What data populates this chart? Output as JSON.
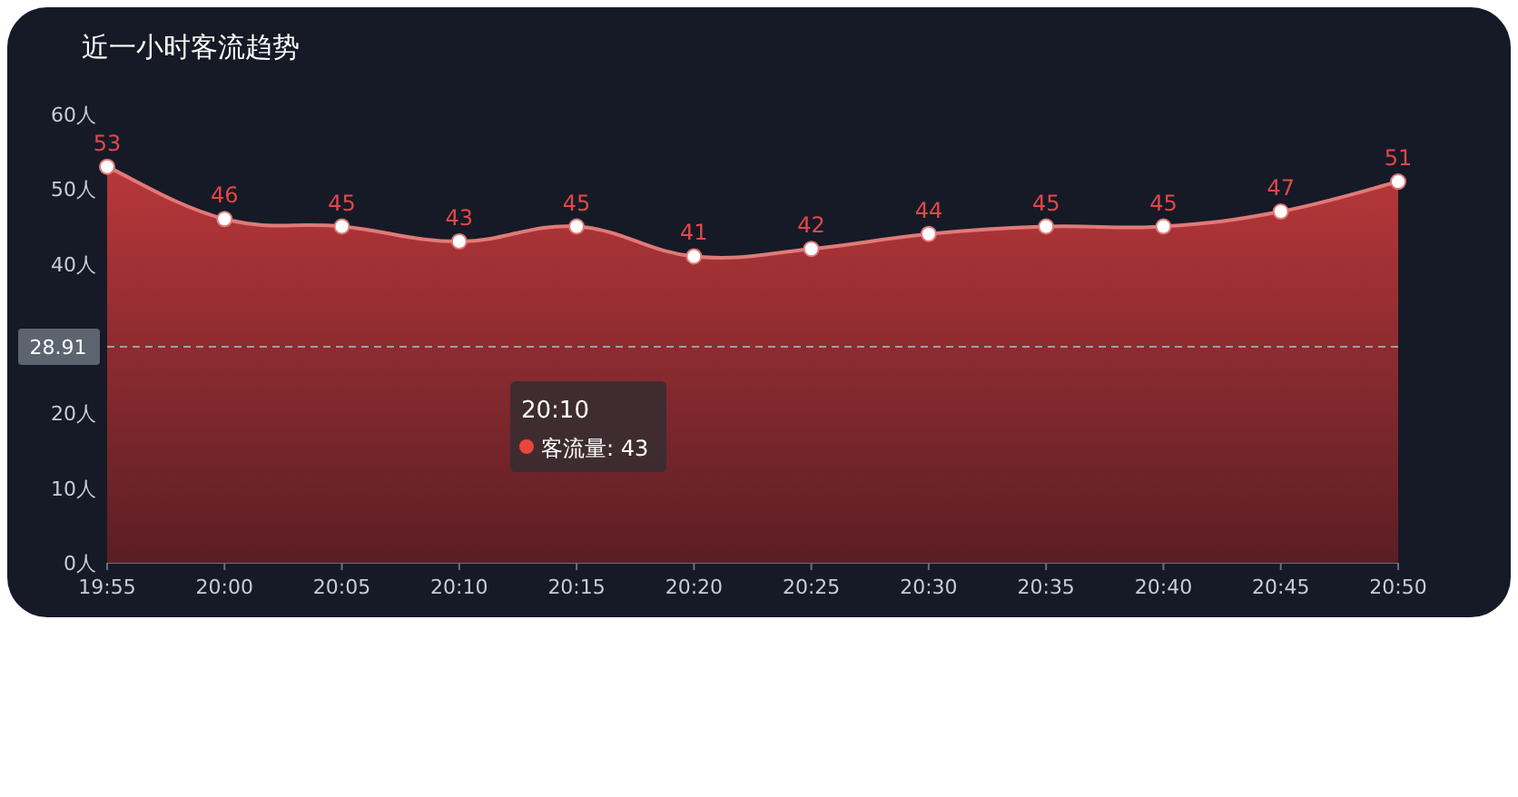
{
  "chart_data": {
    "type": "area",
    "title": "近一小时客流趋势",
    "categories": [
      "19:55",
      "20:00",
      "20:05",
      "20:10",
      "20:15",
      "20:20",
      "20:25",
      "20:30",
      "20:35",
      "20:40",
      "20:45",
      "20:50"
    ],
    "series": [
      {
        "color": "#e07a78",
        "values": [
          53,
          46,
          45,
          43,
          45,
          41,
          42,
          44,
          45,
          45,
          47,
          51
        ]
      }
    ],
    "ylim": [
      0,
      60
    ],
    "yticks": [
      {
        "value": 0,
        "label": "0人"
      },
      {
        "value": 10,
        "label": "10人"
      },
      {
        "value": 20,
        "label": "20人"
      },
      {
        "value": 40,
        "label": "40人"
      },
      {
        "value": 50,
        "label": "50人"
      },
      {
        "value": 60,
        "label": "60人"
      }
    ],
    "ref_lines": [
      {
        "axis": "y",
        "value": 28.91,
        "label": "28.91",
        "color": "#9aa0aa",
        "line_style": "dashed"
      }
    ],
    "annotations": [
      "20:10",
      "客流量: 43"
    ],
    "data_labels": true,
    "marker": "circle",
    "grid": false
  }
}
